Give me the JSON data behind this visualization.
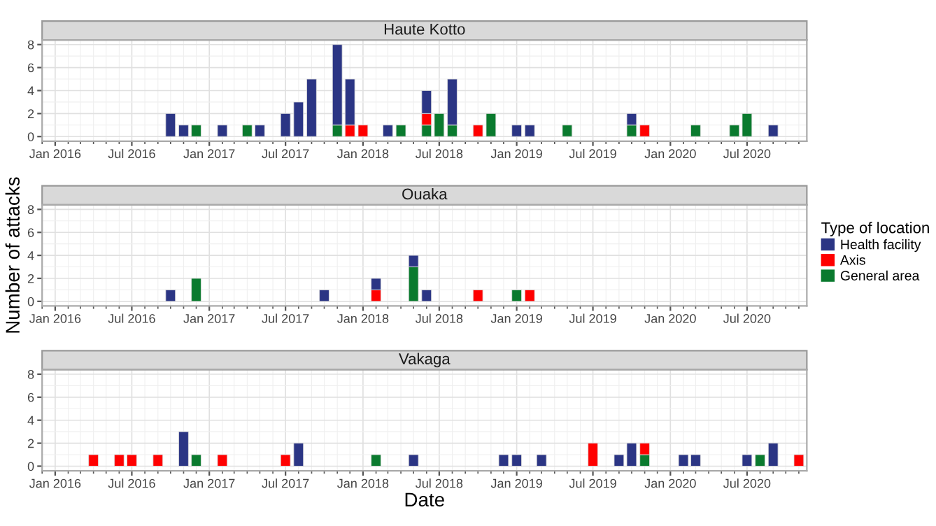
{
  "chart_data": [
    {
      "type": "bar",
      "stacked": true,
      "title": "Haute Kotto",
      "grid": true,
      "legend": "right",
      "legend_title": "Type of location",
      "x": [
        "2016-10",
        "2016-11",
        "2016-12",
        "2017-02",
        "2017-04",
        "2017-05",
        "2017-07",
        "2017-08",
        "2017-09",
        "2017-11",
        "2017-12",
        "2018-01",
        "2018-03",
        "2018-04",
        "2018-06",
        "2018-07",
        "2018-08",
        "2018-10",
        "2018-11",
        "2019-01",
        "2019-02",
        "2019-05",
        "2019-10",
        "2019-11",
        "2020-03",
        "2020-06",
        "2020-07",
        "2020-09"
      ],
      "series": [
        {
          "name": "General area",
          "color": "#0a7a2e",
          "values": [
            null,
            null,
            1,
            null,
            1,
            null,
            null,
            null,
            null,
            1,
            null,
            null,
            null,
            1,
            1,
            2,
            1,
            null,
            2,
            null,
            null,
            1,
            1,
            null,
            1,
            1,
            2,
            null
          ]
        },
        {
          "name": "Axis",
          "color": "#ff0000",
          "values": [
            null,
            null,
            null,
            null,
            null,
            null,
            null,
            null,
            null,
            null,
            1,
            1,
            null,
            null,
            1,
            null,
            null,
            1,
            null,
            null,
            null,
            null,
            null,
            1,
            null,
            null,
            null,
            null
          ]
        },
        {
          "name": "Health facility",
          "color": "#2b3584",
          "values": [
            2,
            1,
            null,
            1,
            null,
            1,
            2,
            3,
            5,
            7,
            4,
            null,
            1,
            null,
            2,
            null,
            4,
            null,
            null,
            1,
            1,
            null,
            1,
            null,
            null,
            null,
            null,
            1
          ]
        }
      ],
      "xlim": [
        "2015-12-26",
        "2020-11-20"
      ],
      "ylim": [
        -0.4,
        8.4
      ],
      "yticks": [
        0,
        2,
        4,
        6,
        8
      ],
      "xticks": [
        {
          "value": "2016-01-01",
          "label": "Jan 2016"
        },
        {
          "value": "2016-07-01",
          "label": "Jul 2016"
        },
        {
          "value": "2017-01-01",
          "label": "Jan 2017"
        },
        {
          "value": "2017-07-01",
          "label": "Jul 2017"
        },
        {
          "value": "2018-01-01",
          "label": "Jan 2018"
        },
        {
          "value": "2018-07-01",
          "label": "Jul 2018"
        },
        {
          "value": "2019-01-01",
          "label": "Jan 2019"
        },
        {
          "value": "2019-07-01",
          "label": "Jul 2019"
        },
        {
          "value": "2020-01-01",
          "label": "Jan 2020"
        },
        {
          "value": "2020-07-01",
          "label": "Jul 2020"
        }
      ]
    },
    {
      "type": "bar",
      "stacked": true,
      "title": "Ouaka",
      "grid": true,
      "ylabel": "Number of attacks",
      "x": [
        "2016-10",
        "2016-12",
        "2017-10",
        "2018-02",
        "2018-05",
        "2018-06",
        "2018-10",
        "2019-01",
        "2019-02"
      ],
      "series": [
        {
          "color": "#0a7a2e",
          "values": [
            null,
            2,
            null,
            null,
            3,
            null,
            null,
            1,
            null
          ]
        },
        {
          "color": "#ff0000",
          "values": [
            null,
            null,
            null,
            1,
            null,
            null,
            1,
            null,
            1
          ]
        },
        {
          "color": "#2b3584",
          "values": [
            1,
            null,
            1,
            1,
            1,
            1,
            null,
            null,
            null
          ]
        }
      ],
      "xlim": [
        "2015-12-26",
        "2020-11-20"
      ],
      "ylim": [
        -0.4,
        8.4
      ],
      "yticks": [
        0,
        2,
        4,
        6,
        8
      ],
      "xticks": [
        {
          "value": "2016-01-01",
          "label": "Jan 2016"
        },
        {
          "value": "2016-07-01",
          "label": "Jul 2016"
        },
        {
          "value": "2017-01-01",
          "label": "Jan 2017"
        },
        {
          "value": "2017-07-01",
          "label": "Jul 2017"
        },
        {
          "value": "2018-01-01",
          "label": "Jan 2018"
        },
        {
          "value": "2018-07-01",
          "label": "Jul 2018"
        },
        {
          "value": "2019-01-01",
          "label": "Jan 2019"
        },
        {
          "value": "2019-07-01",
          "label": "Jul 2019"
        },
        {
          "value": "2020-01-01",
          "label": "Jan 2020"
        },
        {
          "value": "2020-07-01",
          "label": "Jul 2020"
        }
      ]
    },
    {
      "type": "bar",
      "stacked": true,
      "title": "Vakaga",
      "grid": true,
      "xlabel": "Date",
      "x": [
        "2016-04",
        "2016-06",
        "2016-07",
        "2016-09",
        "2016-11",
        "2016-12",
        "2017-02",
        "2017-07",
        "2017-08",
        "2018-02",
        "2018-05",
        "2018-12",
        "2019-01",
        "2019-03",
        "2019-07",
        "2019-09",
        "2019-10",
        "2019-11",
        "2020-02",
        "2020-03",
        "2020-07",
        "2020-08",
        "2020-09",
        "2020-11"
      ],
      "series": [
        {
          "color": "#0a7a2e",
          "values": [
            null,
            null,
            null,
            null,
            null,
            1,
            null,
            null,
            null,
            1,
            null,
            null,
            null,
            null,
            null,
            null,
            null,
            1,
            null,
            null,
            null,
            1,
            null,
            null
          ]
        },
        {
          "color": "#ff0000",
          "values": [
            1,
            1,
            1,
            1,
            null,
            null,
            1,
            1,
            null,
            null,
            null,
            null,
            null,
            null,
            2,
            null,
            null,
            1,
            null,
            null,
            null,
            null,
            null,
            1
          ]
        },
        {
          "color": "#2b3584",
          "values": [
            null,
            null,
            null,
            null,
            3,
            null,
            null,
            null,
            2,
            null,
            1,
            1,
            1,
            1,
            null,
            1,
            2,
            null,
            1,
            1,
            1,
            null,
            2,
            null
          ]
        }
      ],
      "xlim": [
        "2015-12-26",
        "2020-11-20"
      ],
      "ylim": [
        -0.4,
        8.4
      ],
      "yticks": [
        0,
        2,
        4,
        6,
        8
      ],
      "xticks": [
        {
          "value": "2016-01-01",
          "label": "Jan 2016"
        },
        {
          "value": "2016-07-01",
          "label": "Jul 2016"
        },
        {
          "value": "2017-01-01",
          "label": "Jan 2017"
        },
        {
          "value": "2017-07-01",
          "label": "Jul 2017"
        },
        {
          "value": "2018-01-01",
          "label": "Jan 2018"
        },
        {
          "value": "2018-07-01",
          "label": "Jul 2018"
        },
        {
          "value": "2019-01-01",
          "label": "Jan 2019"
        },
        {
          "value": "2019-07-01",
          "label": "Jul 2019"
        },
        {
          "value": "2020-01-01",
          "label": "Jan 2020"
        },
        {
          "value": "2020-07-01",
          "label": "Jul 2020"
        }
      ]
    }
  ]
}
